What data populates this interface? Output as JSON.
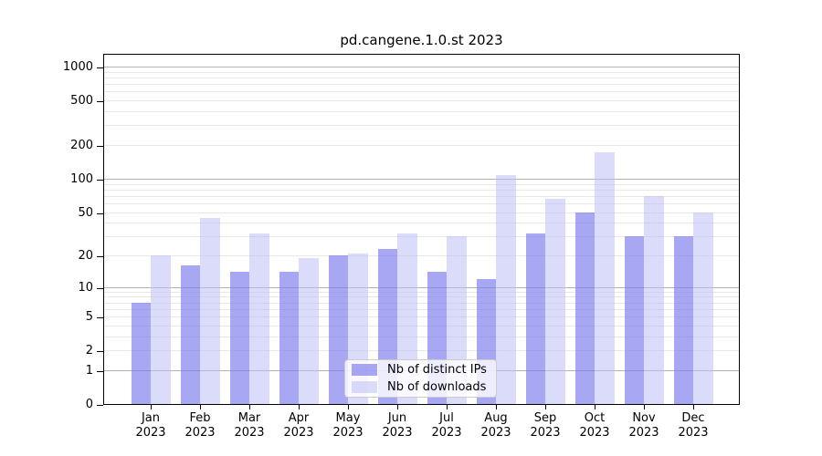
{
  "title": "pd.cangene.1.0.st 2023",
  "chart_data": {
    "type": "bar",
    "title": "pd.cangene.1.0.st 2023",
    "categories": [
      "Jan 2023",
      "Feb 2023",
      "Mar 2023",
      "Apr 2023",
      "May 2023",
      "Jun 2023",
      "Jul 2023",
      "Aug 2023",
      "Sep 2023",
      "Oct 2023",
      "Nov 2023",
      "Dec 2023"
    ],
    "x_tick_lines": [
      {
        "month": "Jan",
        "year": "2023"
      },
      {
        "month": "Feb",
        "year": "2023"
      },
      {
        "month": "Mar",
        "year": "2023"
      },
      {
        "month": "Apr",
        "year": "2023"
      },
      {
        "month": "May",
        "year": "2023"
      },
      {
        "month": "Jun",
        "year": "2023"
      },
      {
        "month": "Jul",
        "year": "2023"
      },
      {
        "month": "Aug",
        "year": "2023"
      },
      {
        "month": "Sep",
        "year": "2023"
      },
      {
        "month": "Oct",
        "year": "2023"
      },
      {
        "month": "Nov",
        "year": "2023"
      },
      {
        "month": "Dec",
        "year": "2023"
      }
    ],
    "series": [
      {
        "name": "Nb of distinct IPs",
        "color": "rgba(122,122,238,0.66)",
        "values": [
          7,
          16,
          14,
          14,
          20,
          23,
          14,
          12,
          32,
          50,
          30,
          30
        ]
      },
      {
        "name": "Nb of downloads",
        "color": "rgba(186,186,246,0.52)",
        "values": [
          20,
          44,
          32,
          19,
          21,
          32,
          30,
          107,
          66,
          172,
          70,
          50
        ]
      }
    ],
    "y_ticks": [
      0,
      1,
      2,
      5,
      10,
      20,
      50,
      100,
      200,
      500,
      1000
    ],
    "y_minor_gridlines": [
      2,
      3,
      4,
      5,
      6,
      7,
      8,
      9,
      20,
      30,
      40,
      50,
      60,
      70,
      80,
      90,
      200,
      300,
      400,
      500,
      600,
      700,
      800,
      900
    ],
    "y_major_gridlines": [
      1,
      10,
      100,
      1000
    ],
    "y_scale": "log10(1+v)",
    "ylim": [
      0,
      1400
    ],
    "grid": true,
    "legend_position": "lower center",
    "colors": {
      "background": "#ffffff",
      "major_grid": "#b3b3b3",
      "minor_grid": "#e8e8e8",
      "axis": "#000000",
      "legend_border": "#cccccc"
    }
  }
}
